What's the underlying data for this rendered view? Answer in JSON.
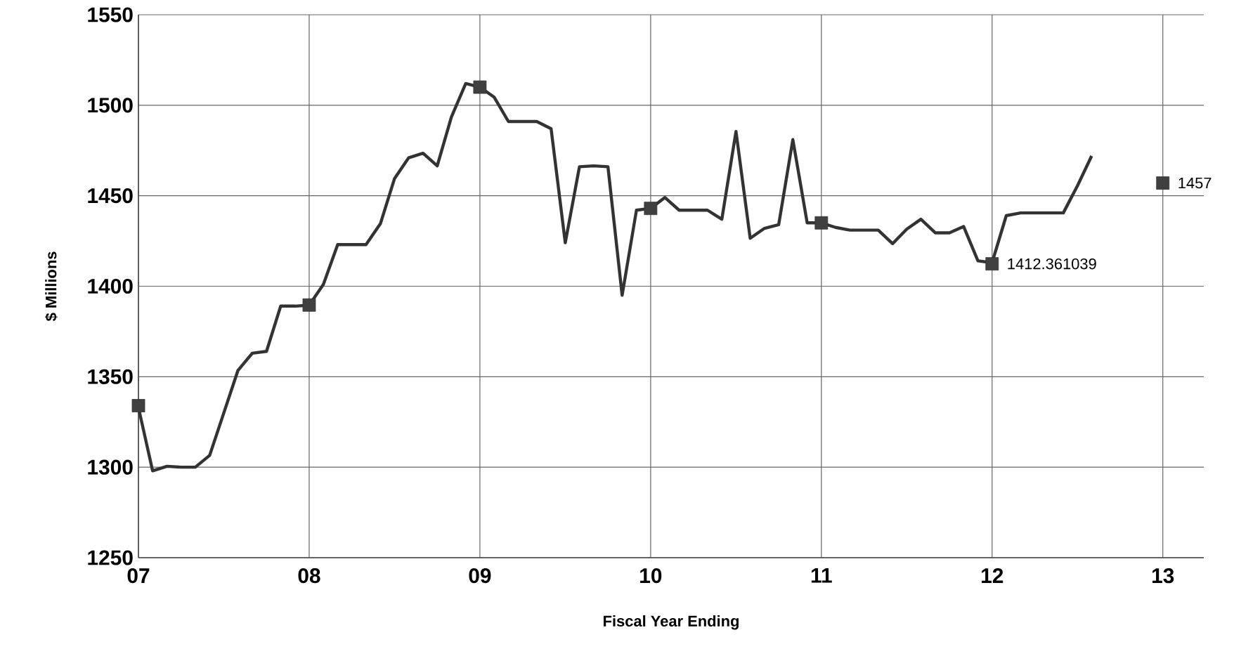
{
  "chart_data": {
    "type": "line",
    "xlabel": "Fiscal Year Ending",
    "ylabel": "$ Millions",
    "xlim": [
      7,
      13.24
    ],
    "ylim": [
      1250,
      1550
    ],
    "xticks": [
      {
        "value": 7,
        "label": "07"
      },
      {
        "value": 8,
        "label": "08"
      },
      {
        "value": 9,
        "label": "09"
      },
      {
        "value": 10,
        "label": "10"
      },
      {
        "value": 11,
        "label": "11"
      },
      {
        "value": 12,
        "label": "12"
      },
      {
        "value": 13,
        "label": "13"
      }
    ],
    "yticks": [
      1250,
      1300,
      1350,
      1400,
      1450,
      1500,
      1550
    ],
    "grid": true,
    "series": [
      {
        "color": "#333333",
        "marker": "none",
        "line_style": "solid",
        "x": [
          7.0,
          7.083,
          7.167,
          7.25,
          7.333,
          7.417,
          7.5,
          7.583,
          7.667,
          7.75,
          7.833,
          7.917,
          8.0,
          8.083,
          8.167,
          8.25,
          8.333,
          8.417,
          8.5,
          8.583,
          8.667,
          8.75,
          8.833,
          8.917,
          9.0,
          9.083,
          9.167,
          9.25,
          9.333,
          9.417,
          9.5,
          9.583,
          9.667,
          9.75,
          9.833,
          9.917,
          10.0,
          10.083,
          10.167,
          10.25,
          10.333,
          10.417,
          10.5,
          10.583,
          10.667,
          10.75,
          10.833,
          10.917,
          11.0,
          11.083,
          11.167,
          11.25,
          11.333,
          11.417,
          11.5,
          11.583,
          11.667,
          11.75,
          11.833,
          11.917,
          12.0,
          12.083,
          12.167,
          12.25,
          12.333,
          12.417,
          12.5,
          12.583
        ],
        "values": [
          1333,
          1298,
          1300.5,
          1300,
          1300,
          1306.5,
          1330,
          1353.5,
          1363,
          1364,
          1389,
          1389,
          1389.5,
          1401,
          1423,
          1423,
          1423,
          1434.5,
          1459.5,
          1471,
          1473.5,
          1466.5,
          1493.5,
          1512,
          1510,
          1504.5,
          1491,
          1491,
          1491,
          1487,
          1424,
          1466,
          1466.5,
          1466,
          1395,
          1442,
          1443,
          1449,
          1442,
          1442,
          1442,
          1437,
          1485.5,
          1426.5,
          1432,
          1434,
          1481,
          1435,
          1435,
          1432.5,
          1431,
          1431,
          1431,
          1423.5,
          1431.5,
          1437,
          1429.5,
          1429.5,
          1433,
          1414,
          1413,
          1439,
          1440.5,
          1440.5,
          1440.5,
          1440.5,
          1455.5,
          1472
        ]
      },
      {
        "type": "scatter",
        "color": "#404040",
        "marker": "square",
        "x": [
          7,
          8,
          9,
          10,
          11,
          12,
          13
        ],
        "values": [
          1334,
          1389.6,
          1510,
          1443,
          1435,
          1412.361039,
          1457
        ],
        "value_labels": [
          null,
          null,
          null,
          null,
          null,
          "1412.361039",
          "1457"
        ]
      }
    ]
  }
}
